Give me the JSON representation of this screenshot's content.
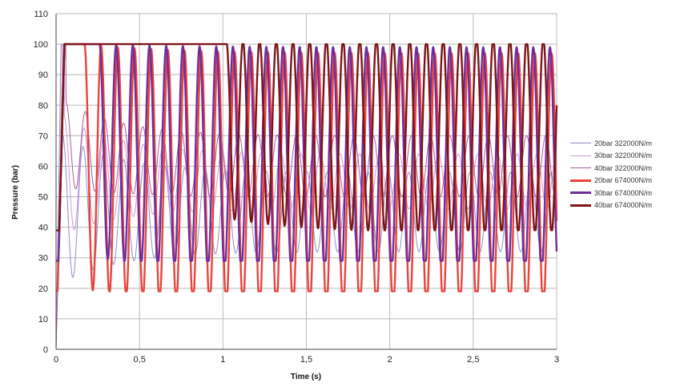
{
  "chart_data": {
    "type": "line",
    "title": "",
    "xlabel": "Time (s)",
    "ylabel": "Pressure (bar)",
    "xlim": [
      0,
      3
    ],
    "ylim": [
      0,
      110
    ],
    "xticks": [
      0,
      0.5,
      1,
      1.5,
      2,
      2.5,
      3
    ],
    "xtick_labels": [
      "0",
      "0,5",
      "1",
      "1,5",
      "2",
      "2,5",
      "3"
    ],
    "yticks": [
      0,
      10,
      20,
      30,
      40,
      50,
      60,
      70,
      80,
      90,
      100,
      110
    ],
    "ytick_labels": [
      "0",
      "10",
      "20",
      "30",
      "40",
      "50",
      "60",
      "70",
      "80",
      "90",
      "100",
      "110"
    ],
    "grid": "major gridlines",
    "legend_position": "right",
    "series": [
      {
        "name": "20bar 322000N/m",
        "color": "#8a8fc8",
        "width": 1,
        "clip_top": 100,
        "rise_end": 0.03,
        "peak_start": 0.04,
        "flat_end": 0.04,
        "osc": {
          "period": 0.122,
          "center0": 46,
          "center1": 45,
          "amp0": 24,
          "amp1": 13,
          "decay": 0.35
        }
      },
      {
        "name": "30bar 322000N/m",
        "color": "#cf9ad6",
        "width": 1,
        "clip_top": 100,
        "rise_end": 0.04,
        "peak_start": 0.05,
        "flat_end": 0.05,
        "osc": {
          "period": 0.118,
          "center0": 57,
          "center1": 55,
          "amp0": 19,
          "amp1": 9,
          "decay": 0.35
        }
      },
      {
        "name": "40bar 322000N/m",
        "color": "#a55ea0",
        "width": 1,
        "clip_top": 100,
        "rise_end": 0.05,
        "peak_start": 0.06,
        "flat_end": 0.06,
        "osc": {
          "period": 0.115,
          "center0": 67,
          "center1": 60,
          "amp0": 14,
          "amp1": 10,
          "decay": 0.35
        }
      },
      {
        "name": "20bar 674000N/m",
        "color": "#e8443c",
        "width": 2.4,
        "clip_top": 100,
        "clip_bottom": 19,
        "rise_end": 0.05,
        "peak_start": 0.08,
        "flat_end": 0.17,
        "osc": {
          "period": 0.1,
          "center0": 60,
          "center1": 55,
          "amp0": 40,
          "amp1": 42,
          "decay": 0.5
        }
      },
      {
        "name": "30bar 674000N/m",
        "color": "#702d9a",
        "width": 2.4,
        "clip_top": 100,
        "clip_bottom": 29,
        "rise_end": 0.05,
        "peak_start": 0.08,
        "flat_end": 0.26,
        "osc": {
          "period": 0.1,
          "center0": 65,
          "center1": 62,
          "amp0": 35,
          "amp1": 37,
          "decay": 0.5
        }
      },
      {
        "name": "40bar 674000N/m",
        "color": "#7e1418",
        "width": 2.4,
        "clip_top": 100,
        "clip_bottom": 39,
        "rise_end": 0.05,
        "peak_start": 0.06,
        "flat_end": 1.02,
        "osc": {
          "period": 0.1,
          "center0": 72,
          "center1": 70,
          "amp0": 29,
          "amp1": 32,
          "decay": 0.5
        }
      }
    ]
  }
}
